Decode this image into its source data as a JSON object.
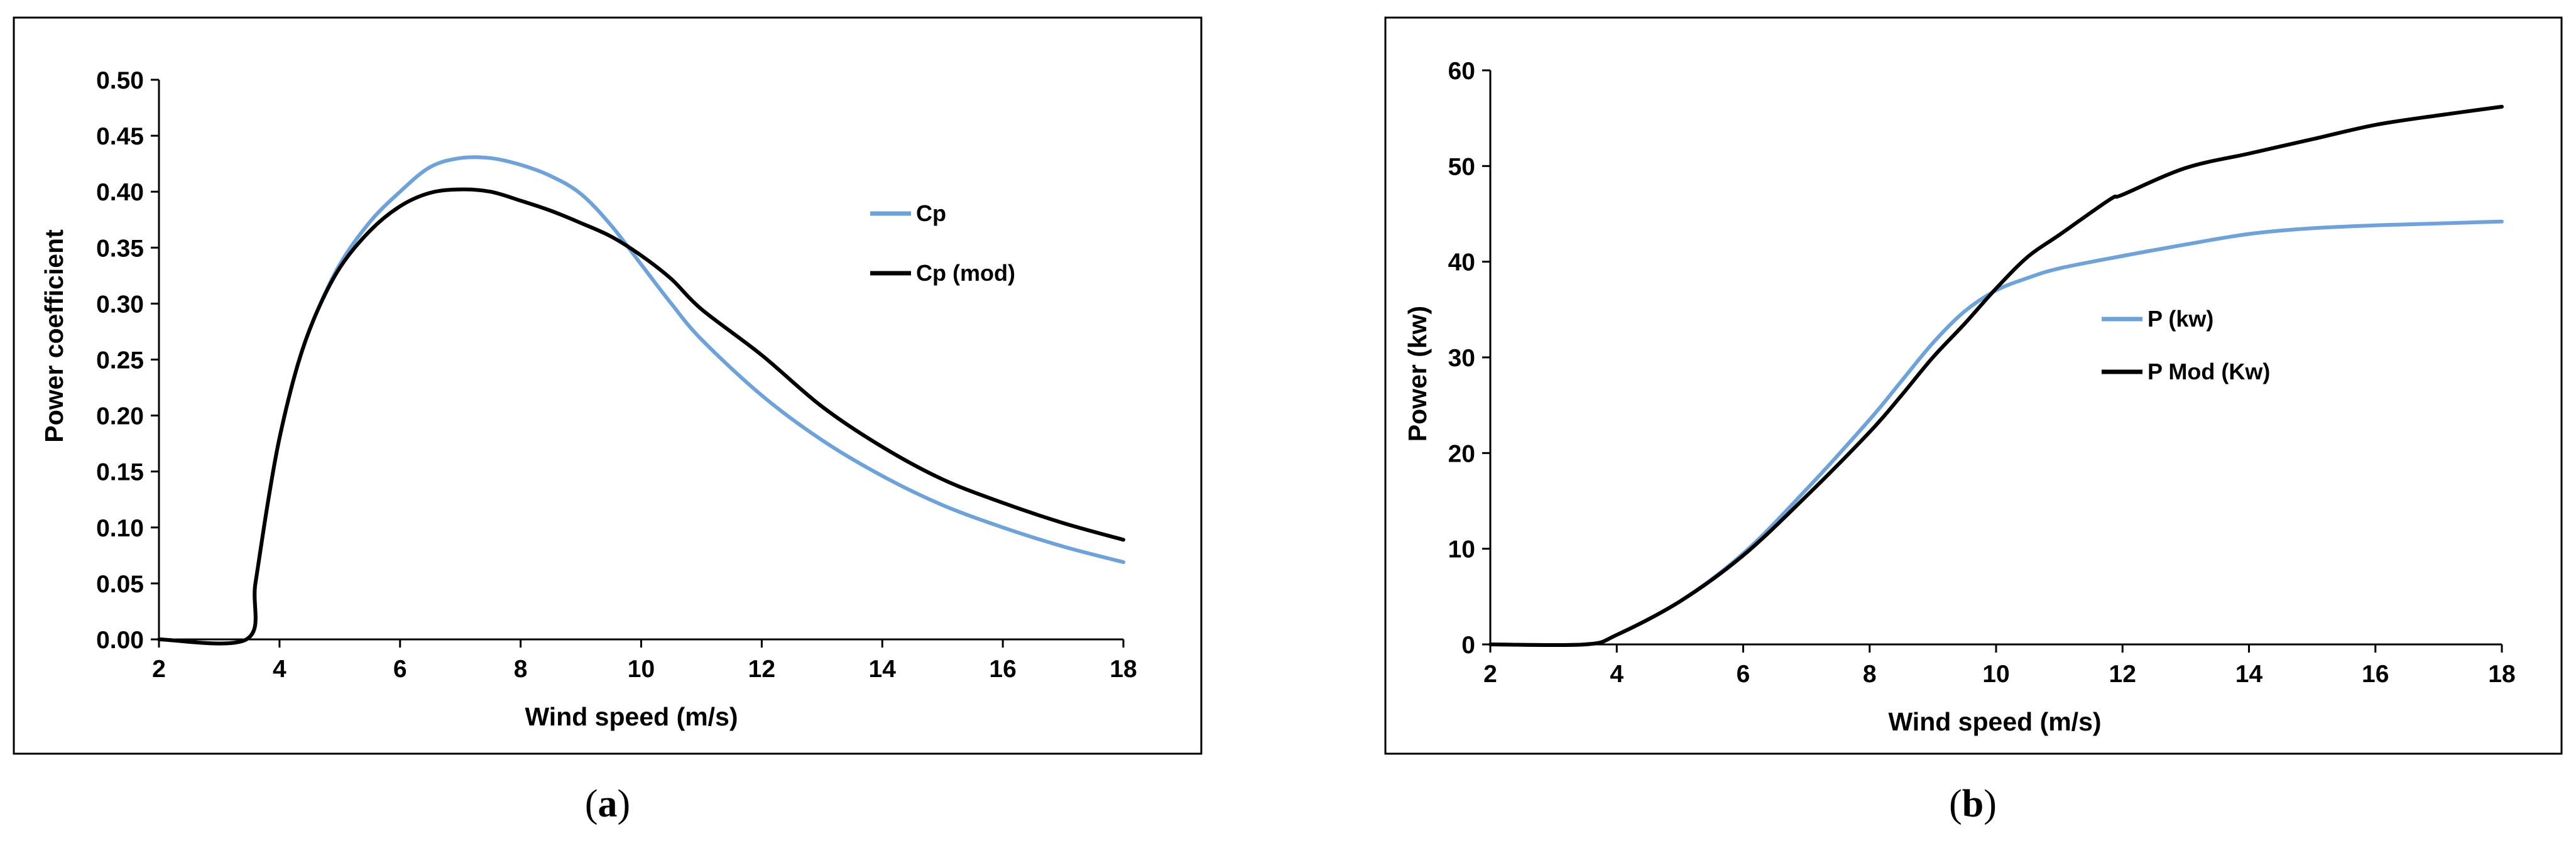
{
  "colors": {
    "blue": "#6fa3d8",
    "black": "#000000",
    "frame": "#000000"
  },
  "chart_data": [
    {
      "type": "line",
      "caption": {
        "open": "(",
        "letter": "a",
        "close": ")"
      },
      "title": "",
      "xlabel": "Wind speed (m/s)",
      "ylabel": "Power coefficient",
      "xlim": [
        2,
        18
      ],
      "ylim": [
        0,
        0.5
      ],
      "xticks": [
        2,
        4,
        6,
        8,
        10,
        12,
        14,
        16,
        18
      ],
      "yticks": [
        0.0,
        0.05,
        0.1,
        0.15,
        0.2,
        0.25,
        0.3,
        0.35,
        0.4,
        0.45,
        0.5
      ],
      "ytick_decimals": 2,
      "legend_position": "right",
      "series": [
        {
          "name": "Cp",
          "color": "#6fa3d8",
          "x": [
            2,
            3.45,
            3.6,
            3.8,
            4.0,
            4.3,
            4.6,
            5.0,
            5.5,
            6.0,
            6.5,
            7.0,
            7.5,
            8.0,
            8.5,
            9.0,
            9.5,
            10.0,
            10.5,
            11.0,
            12.0,
            13.0,
            14.0,
            15.0,
            16.0,
            17.0,
            18.0
          ],
          "y": [
            0,
            0,
            0.05,
            0.12,
            0.18,
            0.245,
            0.29,
            0.335,
            0.373,
            0.4,
            0.422,
            0.43,
            0.43,
            0.424,
            0.414,
            0.398,
            0.37,
            0.335,
            0.3,
            0.268,
            0.218,
            0.178,
            0.146,
            0.12,
            0.1,
            0.083,
            0.069
          ]
        },
        {
          "name": "Cp (mod)",
          "color": "#000000",
          "x": [
            2,
            3.45,
            3.6,
            3.8,
            4.0,
            4.3,
            4.6,
            5.0,
            5.5,
            6.0,
            6.5,
            7.0,
            7.5,
            8.0,
            8.5,
            9.0,
            9.5,
            10.0,
            10.5,
            11.0,
            12.0,
            13.0,
            14.0,
            15.0,
            16.0,
            17.0,
            18.0
          ],
          "y": [
            0,
            0,
            0.05,
            0.12,
            0.18,
            0.245,
            0.29,
            0.332,
            0.365,
            0.387,
            0.399,
            0.402,
            0.4,
            0.392,
            0.383,
            0.372,
            0.36,
            0.343,
            0.322,
            0.295,
            0.254,
            0.208,
            0.172,
            0.143,
            0.122,
            0.104,
            0.089
          ]
        }
      ]
    },
    {
      "type": "line",
      "caption": {
        "open": "(",
        "letter": "b",
        "close": ")"
      },
      "title": "",
      "xlabel": "Wind speed (m/s)",
      "ylabel": "Power (kw)",
      "xlim": [
        2,
        18
      ],
      "ylim": [
        0,
        60
      ],
      "xticks": [
        2,
        4,
        6,
        8,
        10,
        12,
        14,
        16,
        18
      ],
      "yticks": [
        0,
        10,
        20,
        30,
        40,
        50,
        60
      ],
      "ytick_decimals": 0,
      "legend_position": "center-right",
      "series": [
        {
          "name": "P (kw)",
          "color": "#6fa3d8",
          "x": [
            2,
            3.5,
            4.0,
            5.0,
            6.0,
            7.0,
            8.0,
            8.5,
            9.0,
            9.5,
            10.0,
            10.5,
            11.0,
            12.0,
            13.0,
            14.0,
            15.0,
            16.0,
            17.0,
            18.0
          ],
          "y": [
            0,
            0,
            1.0,
            4.5,
            9.5,
            16.2,
            23.5,
            27.5,
            31.5,
            34.8,
            37.0,
            38.3,
            39.3,
            40.6,
            41.8,
            42.9,
            43.5,
            43.8,
            44.0,
            44.2
          ]
        },
        {
          "name": "P Mod (Kw)",
          "color": "#000000",
          "x": [
            2,
            3.5,
            4.0,
            5.0,
            6.0,
            7.0,
            8.0,
            8.5,
            9.0,
            9.5,
            10.0,
            10.5,
            11.0,
            11.8,
            12.0,
            13.0,
            14.0,
            15.0,
            16.0,
            17.0,
            18.0
          ],
          "y": [
            0,
            0,
            1.0,
            4.5,
            9.3,
            15.5,
            22.2,
            26.0,
            30.0,
            33.5,
            37.2,
            40.5,
            42.8,
            46.5,
            47.0,
            49.8,
            51.3,
            52.8,
            54.3,
            55.3,
            56.2
          ]
        }
      ]
    }
  ]
}
